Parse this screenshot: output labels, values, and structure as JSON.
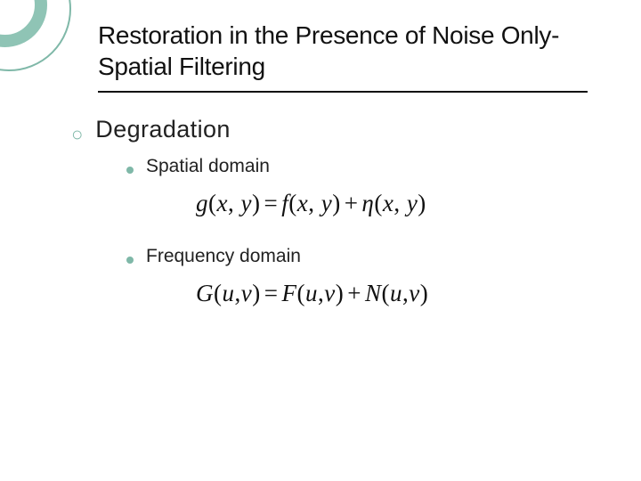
{
  "decor": {
    "ring_color": "#8fc4b5",
    "ring_outline": "#7fb8a8"
  },
  "title": "Restoration in the Presence of Noise Only-Spatial Filtering",
  "content": {
    "heading": "Degradation",
    "items": [
      {
        "label": "Spatial domain",
        "equation_html": "g<span class=\"rm\">(</span>x<span class=\"rm\">,&nbsp;</span>y<span class=\"rm\">)</span><span class=\"op\">=</span>f<span class=\"rm\">(</span>x<span class=\"rm\">,&nbsp;</span>y<span class=\"rm\">)</span><span class=\"op\">+</span>&eta;<span class=\"rm\">(</span>x<span class=\"rm\">,&nbsp;</span>y<span class=\"rm\">)</span>"
      },
      {
        "label": "Frequency domain",
        "equation_html": "G<span class=\"rm\">(</span>u<span class=\"rm\">,</span>v<span class=\"rm\">)</span><span class=\"op\">=</span>F<span class=\"rm\">(</span>u<span class=\"rm\">,</span>v<span class=\"rm\">)</span><span class=\"op\">+</span>N<span class=\"rm\">(</span>u<span class=\"rm\">,</span>v<span class=\"rm\">)</span>"
      }
    ]
  },
  "colors": {
    "text": "#111111",
    "accent": "#7fb8a8",
    "background": "#ffffff",
    "rule": "#111111"
  },
  "typography": {
    "title_fontsize": 28,
    "heading_fontsize": 27,
    "item_fontsize": 21,
    "equation_fontsize": 27,
    "body_font": "Verdana",
    "equation_font": "Times New Roman"
  }
}
